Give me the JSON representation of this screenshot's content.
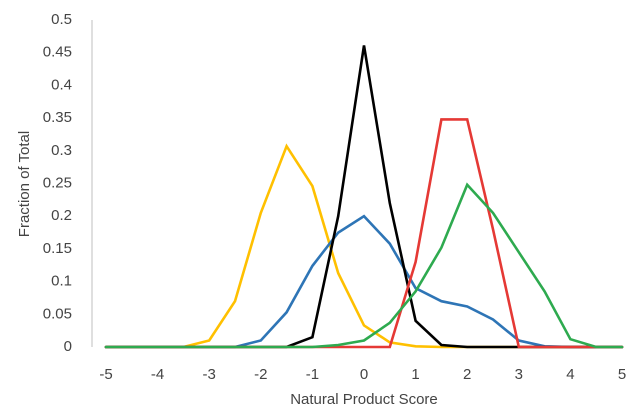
{
  "chart_data": {
    "type": "line",
    "title": "",
    "xlabel": "Natural Product Score",
    "ylabel": "Fraction of Total",
    "xlim": [
      -5,
      5
    ],
    "ylim": [
      0,
      0.5
    ],
    "x_ticks": [
      "-5",
      "-4",
      "-3",
      "-2",
      "-1",
      "0",
      "1",
      "2",
      "3",
      "4",
      "5"
    ],
    "y_ticks": [
      "0",
      "0.05",
      "0.1",
      "0.15",
      "0.2",
      "0.25",
      "0.3",
      "0.35",
      "0.4",
      "0.45",
      "0.5"
    ],
    "grid": false,
    "legend": "none",
    "x": [
      -5,
      -4.5,
      -4,
      -3.5,
      -3,
      -2.5,
      -2,
      -1.5,
      -1,
      -0.5,
      0,
      0.5,
      1,
      1.5,
      2,
      2.5,
      3,
      3.5,
      4,
      4.5,
      5
    ],
    "series": [
      {
        "color": "#FFC000",
        "values": [
          0,
          0,
          0,
          0,
          0.01,
          0.07,
          0.205,
          0.307,
          0.246,
          0.113,
          0.033,
          0.007,
          0.001,
          0,
          0,
          0,
          0,
          0,
          0,
          0,
          0
        ]
      },
      {
        "color": "#2E75B6",
        "values": [
          0,
          0,
          0,
          0,
          0,
          0,
          0.01,
          0.053,
          0.124,
          0.175,
          0.2,
          0.158,
          0.09,
          0.07,
          0.062,
          0.042,
          0.01,
          0.001,
          0,
          0,
          0
        ]
      },
      {
        "color": "#000000",
        "values": [
          0,
          0,
          0,
          0,
          0,
          0,
          0,
          0,
          0.015,
          0.2,
          0.461,
          0.22,
          0.04,
          0.003,
          0,
          0,
          0,
          0,
          0,
          0,
          0
        ]
      },
      {
        "color": "#E53935",
        "values": [
          0,
          0,
          0,
          0,
          0,
          0,
          0,
          0,
          0,
          0,
          0,
          0,
          0.13,
          0.348,
          0.348,
          0.18,
          0,
          0,
          0,
          0,
          0
        ]
      },
      {
        "color": "#2EAA4F",
        "values": [
          0,
          0,
          0,
          0,
          0,
          0,
          0,
          0,
          0,
          0.003,
          0.01,
          0.037,
          0.085,
          0.152,
          0.248,
          0.205,
          0.145,
          0.085,
          0.012,
          0,
          0
        ]
      }
    ]
  }
}
